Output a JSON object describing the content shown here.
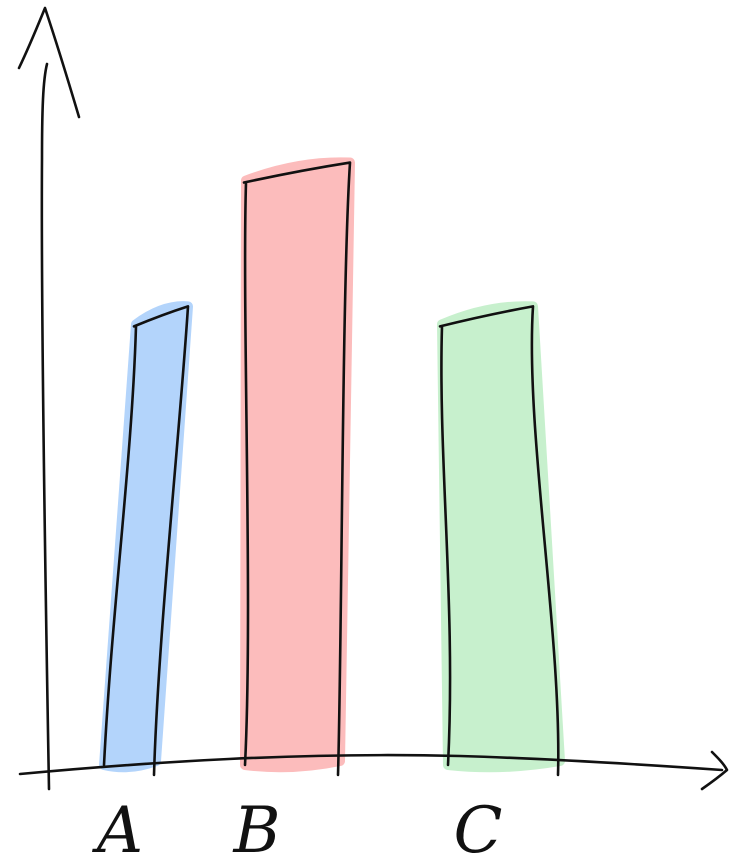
{
  "chart_data": {
    "type": "bar",
    "title": "",
    "xlabel": "",
    "ylabel": "",
    "categories": [
      "A",
      "B",
      "C"
    ],
    "values": [
      59,
      78,
      59
    ],
    "ylim": [
      0,
      100
    ],
    "grid": false,
    "legend": "none",
    "colors": [
      "#b3d4fb",
      "#fcbcbc",
      "#c7f0cd"
    ],
    "style": "hand-drawn sketch"
  }
}
